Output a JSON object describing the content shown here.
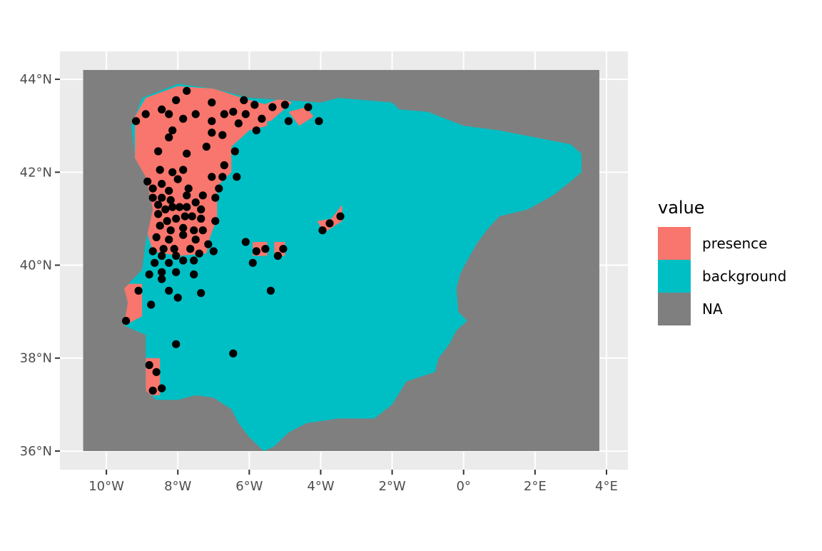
{
  "legend": {
    "title": "value",
    "items": [
      {
        "label": "presence",
        "color": "#F8766D"
      },
      {
        "label": "background",
        "color": "#00BFC4"
      },
      {
        "label": "NA",
        "color": "#7F7F7F"
      }
    ]
  },
  "map_data": {
    "x_ticks": [
      {
        "value": -10,
        "label": "10°W"
      },
      {
        "value": -8,
        "label": "8°W"
      },
      {
        "value": -6,
        "label": "6°W"
      },
      {
        "value": -4,
        "label": "4°W"
      },
      {
        "value": -2,
        "label": "2°W"
      },
      {
        "value": 0,
        "label": "0°"
      },
      {
        "value": 2,
        "label": "2°E"
      },
      {
        "value": 4,
        "label": "4°E"
      }
    ],
    "y_ticks": [
      {
        "value": 36,
        "label": "36°N"
      },
      {
        "value": 38,
        "label": "38°N"
      },
      {
        "value": 40,
        "label": "40°N"
      },
      {
        "value": 42,
        "label": "42°N"
      },
      {
        "value": 44,
        "label": "44°N"
      }
    ],
    "xlim": [
      -11.3,
      4.6
    ],
    "ylim": [
      35.6,
      44.6
    ],
    "raster_extent": {
      "lon": [
        -10.65,
        3.8
      ],
      "lat": [
        36.0,
        44.2
      ]
    },
    "colors": {
      "panel": "#EBEBEB",
      "grid": "#FFFFFF",
      "presence": "#F8766D",
      "background": "#00BFC4",
      "na": "#7F7F7F",
      "point": "#000000"
    },
    "land_outline": [
      [
        -9.0,
        43.6
      ],
      [
        -8.0,
        43.9
      ],
      [
        -7.0,
        43.8
      ],
      [
        -6.0,
        43.6
      ],
      [
        -5.0,
        43.55
      ],
      [
        -4.0,
        43.5
      ],
      [
        -3.5,
        43.6
      ],
      [
        -2.0,
        43.5
      ],
      [
        -1.8,
        43.35
      ],
      [
        -1.0,
        43.3
      ],
      [
        0.0,
        43.0
      ],
      [
        1.0,
        42.9
      ],
      [
        2.0,
        42.75
      ],
      [
        3.0,
        42.6
      ],
      [
        3.3,
        42.4
      ],
      [
        3.3,
        42.0
      ],
      [
        3.0,
        41.8
      ],
      [
        2.5,
        41.5
      ],
      [
        1.8,
        41.2
      ],
      [
        1.0,
        41.05
      ],
      [
        0.7,
        40.8
      ],
      [
        0.4,
        40.5
      ],
      [
        0.1,
        40.1
      ],
      [
        -0.1,
        39.8
      ],
      [
        -0.2,
        39.5
      ],
      [
        -0.15,
        39.0
      ],
      [
        0.1,
        38.8
      ],
      [
        -0.2,
        38.6
      ],
      [
        -0.4,
        38.3
      ],
      [
        -0.7,
        38.0
      ],
      [
        -0.8,
        37.7
      ],
      [
        -1.6,
        37.5
      ],
      [
        -2.0,
        37.0
      ],
      [
        -2.5,
        36.7
      ],
      [
        -3.5,
        36.7
      ],
      [
        -4.4,
        36.6
      ],
      [
        -4.9,
        36.4
      ],
      [
        -5.3,
        36.1
      ],
      [
        -5.6,
        36.0
      ],
      [
        -6.0,
        36.3
      ],
      [
        -6.3,
        36.6
      ],
      [
        -6.5,
        36.9
      ],
      [
        -7.0,
        37.15
      ],
      [
        -7.5,
        37.2
      ],
      [
        -8.0,
        37.1
      ],
      [
        -8.6,
        37.1
      ],
      [
        -8.9,
        37.3
      ],
      [
        -8.9,
        38.5
      ],
      [
        -9.5,
        38.7
      ],
      [
        -9.4,
        39.2
      ],
      [
        -9.5,
        39.5
      ],
      [
        -9.0,
        39.9
      ],
      [
        -8.9,
        40.5
      ],
      [
        -8.7,
        41.2
      ],
      [
        -8.9,
        41.9
      ],
      [
        -9.2,
        42.3
      ],
      [
        -9.3,
        43.0
      ],
      [
        -9.0,
        43.6
      ]
    ],
    "presence_region": [
      [
        -9.2,
        43.2
      ],
      [
        -8.9,
        43.6
      ],
      [
        -8.0,
        43.85
      ],
      [
        -7.0,
        43.8
      ],
      [
        -6.2,
        43.6
      ],
      [
        -5.5,
        43.45
      ],
      [
        -5.5,
        43.0
      ],
      [
        -6.0,
        42.9
      ],
      [
        -6.5,
        42.55
      ],
      [
        -6.5,
        42.0
      ],
      [
        -6.9,
        41.7
      ],
      [
        -6.9,
        41.0
      ],
      [
        -7.1,
        40.6
      ],
      [
        -7.2,
        40.25
      ],
      [
        -8.0,
        40.2
      ],
      [
        -8.7,
        40.3
      ],
      [
        -8.9,
        40.8
      ],
      [
        -8.8,
        41.4
      ],
      [
        -8.9,
        41.9
      ],
      [
        -9.2,
        42.3
      ],
      [
        -9.2,
        42.8
      ],
      [
        -9.2,
        43.2
      ]
    ],
    "presence_patches": [
      [
        [
          -6.1,
          43.3
        ],
        [
          -5.1,
          43.6
        ],
        [
          -4.8,
          43.5
        ],
        [
          -5.4,
          43.1
        ],
        [
          -6.1,
          43.1
        ]
      ],
      [
        [
          -4.9,
          43.3
        ],
        [
          -4.4,
          43.4
        ],
        [
          -4.2,
          43.2
        ],
        [
          -4.6,
          43.0
        ]
      ],
      [
        [
          -9.5,
          39.6
        ],
        [
          -9.0,
          39.6
        ],
        [
          -9.0,
          38.9
        ],
        [
          -9.5,
          38.7
        ]
      ],
      [
        [
          -8.9,
          38.0
        ],
        [
          -8.5,
          38.0
        ],
        [
          -8.5,
          37.2
        ],
        [
          -8.9,
          37.2
        ]
      ],
      [
        [
          -5.9,
          40.5
        ],
        [
          -5.5,
          40.5
        ],
        [
          -5.5,
          40.2
        ],
        [
          -5.9,
          40.2
        ]
      ],
      [
        [
          -5.3,
          40.5
        ],
        [
          -5.0,
          40.5
        ],
        [
          -5.0,
          40.2
        ],
        [
          -5.3,
          40.2
        ]
      ],
      [
        [
          -4.1,
          40.95
        ],
        [
          -3.7,
          41.0
        ],
        [
          -3.4,
          41.3
        ],
        [
          -3.4,
          40.95
        ],
        [
          -3.9,
          40.7
        ]
      ]
    ],
    "points": [
      [
        -9.17,
        43.1
      ],
      [
        -8.9,
        43.25
      ],
      [
        -8.45,
        43.35
      ],
      [
        -8.25,
        43.25
      ],
      [
        -8.05,
        43.55
      ],
      [
        -7.75,
        43.75
      ],
      [
        -7.85,
        43.15
      ],
      [
        -7.5,
        43.25
      ],
      [
        -7.05,
        43.5
      ],
      [
        -6.7,
        43.25
      ],
      [
        -6.45,
        43.3
      ],
      [
        -6.15,
        43.55
      ],
      [
        -6.1,
        43.25
      ],
      [
        -5.85,
        43.45
      ],
      [
        -5.65,
        43.15
      ],
      [
        -5.35,
        43.4
      ],
      [
        -5.0,
        43.45
      ],
      [
        -4.9,
        43.1
      ],
      [
        -4.35,
        43.4
      ],
      [
        -4.05,
        43.1
      ],
      [
        -8.25,
        42.75
      ],
      [
        -8.15,
        42.9
      ],
      [
        -7.05,
        43.1
      ],
      [
        -7.05,
        42.85
      ],
      [
        -6.75,
        42.8
      ],
      [
        -6.3,
        43.05
      ],
      [
        -5.8,
        42.9
      ],
      [
        -7.2,
        42.55
      ],
      [
        -8.55,
        42.45
      ],
      [
        -7.75,
        42.4
      ],
      [
        -6.4,
        42.45
      ],
      [
        -8.5,
        42.05
      ],
      [
        -8.15,
        42.0
      ],
      [
        -7.85,
        42.05
      ],
      [
        -8.85,
        41.8
      ],
      [
        -8.7,
        41.65
      ],
      [
        -8.45,
        41.75
      ],
      [
        -8.25,
        41.6
      ],
      [
        -8.0,
        41.85
      ],
      [
        -7.05,
        41.9
      ],
      [
        -6.75,
        41.9
      ],
      [
        -6.7,
        42.15
      ],
      [
        -6.35,
        41.9
      ],
      [
        -6.85,
        41.65
      ],
      [
        -8.7,
        41.45
      ],
      [
        -8.45,
        41.45
      ],
      [
        -8.2,
        41.4
      ],
      [
        -7.75,
        41.5
      ],
      [
        -7.7,
        41.65
      ],
      [
        -7.5,
        41.35
      ],
      [
        -7.3,
        41.5
      ],
      [
        -6.95,
        41.45
      ],
      [
        -8.55,
        41.3
      ],
      [
        -8.35,
        41.2
      ],
      [
        -8.15,
        41.25
      ],
      [
        -7.95,
        41.25
      ],
      [
        -7.75,
        41.25
      ],
      [
        -8.55,
        41.1
      ],
      [
        -8.3,
        40.95
      ],
      [
        -8.05,
        41.0
      ],
      [
        -7.8,
        41.05
      ],
      [
        -7.6,
        41.05
      ],
      [
        -7.35,
        41.0
      ],
      [
        -7.35,
        41.2
      ],
      [
        -6.95,
        40.95
      ],
      [
        -8.5,
        40.85
      ],
      [
        -8.2,
        40.75
      ],
      [
        -7.85,
        40.8
      ],
      [
        -7.55,
        40.75
      ],
      [
        -7.3,
        40.75
      ],
      [
        -8.6,
        40.6
      ],
      [
        -8.25,
        40.55
      ],
      [
        -7.85,
        40.65
      ],
      [
        -7.5,
        40.55
      ],
      [
        -8.7,
        40.3
      ],
      [
        -8.4,
        40.35
      ],
      [
        -8.1,
        40.35
      ],
      [
        -7.65,
        40.35
      ],
      [
        -7.15,
        40.45
      ],
      [
        -7.4,
        40.25
      ],
      [
        -7.0,
        40.3
      ],
      [
        -8.45,
        40.2
      ],
      [
        -8.05,
        40.2
      ],
      [
        -7.85,
        40.1
      ],
      [
        -7.55,
        40.1
      ],
      [
        -8.65,
        40.05
      ],
      [
        -8.25,
        40.05
      ],
      [
        -6.1,
        40.5
      ],
      [
        -5.8,
        40.3
      ],
      [
        -5.55,
        40.35
      ],
      [
        -5.2,
        40.2
      ],
      [
        -5.05,
        40.35
      ],
      [
        -5.9,
        40.05
      ],
      [
        -3.95,
        40.75
      ],
      [
        -3.75,
        40.9
      ],
      [
        -3.45,
        41.05
      ],
      [
        -8.8,
        39.8
      ],
      [
        -8.45,
        39.85
      ],
      [
        -8.05,
        39.85
      ],
      [
        -7.55,
        39.8
      ],
      [
        -8.45,
        39.7
      ],
      [
        -9.1,
        39.45
      ],
      [
        -8.25,
        39.45
      ],
      [
        -8.0,
        39.3
      ],
      [
        -7.35,
        39.4
      ],
      [
        -5.4,
        39.45
      ],
      [
        -8.75,
        39.15
      ],
      [
        -9.45,
        38.8
      ],
      [
        -8.05,
        38.3
      ],
      [
        -6.45,
        38.1
      ],
      [
        -8.8,
        37.85
      ],
      [
        -8.6,
        37.7
      ],
      [
        -8.45,
        37.35
      ],
      [
        -8.7,
        37.3
      ]
    ]
  }
}
